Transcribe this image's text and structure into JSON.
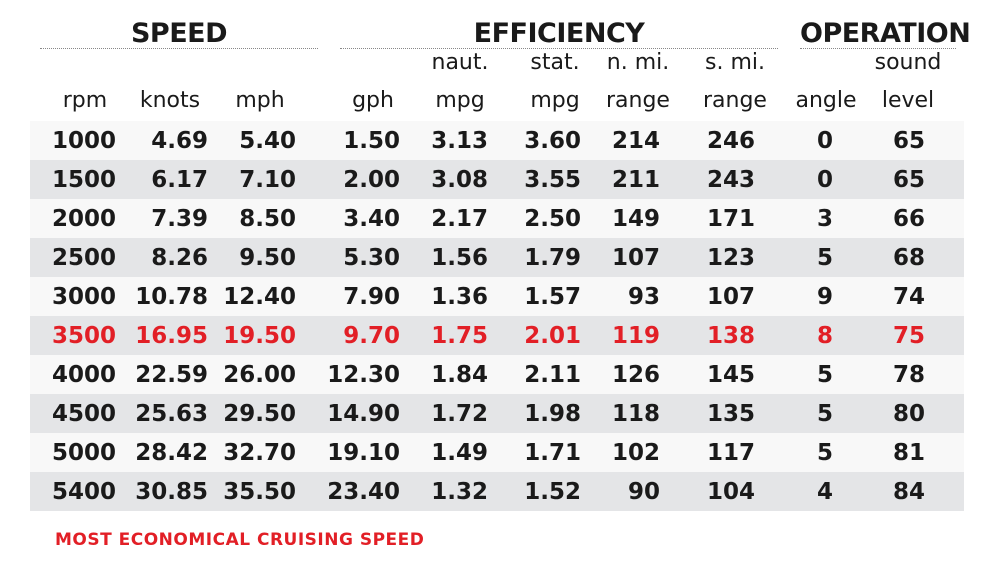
{
  "groups": {
    "speed": "SPEED",
    "efficiency": "EFFICIENCY",
    "operation": "OPERATION"
  },
  "headers": {
    "rpm": [
      "",
      "rpm"
    ],
    "knots": [
      "",
      "knots"
    ],
    "mph": [
      "",
      "mph"
    ],
    "gph": [
      "",
      "gph"
    ],
    "naut_mpg": [
      "naut.",
      "mpg"
    ],
    "stat_mpg": [
      "stat.",
      "mpg"
    ],
    "nmi_range": [
      "n. mi.",
      "range"
    ],
    "smi_range": [
      "s. mi.",
      "range"
    ],
    "angle": [
      "",
      "angle"
    ],
    "sound_level": [
      "sound",
      "level"
    ]
  },
  "chart_data": {
    "type": "table",
    "columns": [
      "rpm",
      "knots",
      "mph",
      "gph",
      "naut. mpg",
      "stat. mpg",
      "n. mi. range",
      "s. mi. range",
      "angle",
      "sound level"
    ],
    "rows": [
      [
        "1000",
        "4.69",
        "5.40",
        "1.50",
        "3.13",
        "3.60",
        "214",
        "246",
        "0",
        "65"
      ],
      [
        "1500",
        "6.17",
        "7.10",
        "2.00",
        "3.08",
        "3.55",
        "211",
        "243",
        "0",
        "65"
      ],
      [
        "2000",
        "7.39",
        "8.50",
        "3.40",
        "2.17",
        "2.50",
        "149",
        "171",
        "3",
        "66"
      ],
      [
        "2500",
        "8.26",
        "9.50",
        "5.30",
        "1.56",
        "1.79",
        "107",
        "123",
        "5",
        "68"
      ],
      [
        "3000",
        "10.78",
        "12.40",
        "7.90",
        "1.36",
        "1.57",
        "93",
        "107",
        "9",
        "74"
      ],
      [
        "3500",
        "16.95",
        "19.50",
        "9.70",
        "1.75",
        "2.01",
        "119",
        "138",
        "8",
        "75"
      ],
      [
        "4000",
        "22.59",
        "26.00",
        "12.30",
        "1.84",
        "2.11",
        "126",
        "145",
        "5",
        "78"
      ],
      [
        "4500",
        "25.63",
        "29.50",
        "14.90",
        "1.72",
        "1.98",
        "118",
        "135",
        "5",
        "80"
      ],
      [
        "5000",
        "28.42",
        "32.70",
        "19.10",
        "1.49",
        "1.71",
        "102",
        "117",
        "5",
        "81"
      ],
      [
        "5400",
        "30.85",
        "35.50",
        "23.40",
        "1.32",
        "1.52",
        "90",
        "104",
        "4",
        "84"
      ]
    ],
    "highlight_row": 5,
    "highlight_color": "#e21f26",
    "stripe_color": "#e4e5e7",
    "footnote": "MOST ECONOMICAL CRUISING SPEED"
  }
}
